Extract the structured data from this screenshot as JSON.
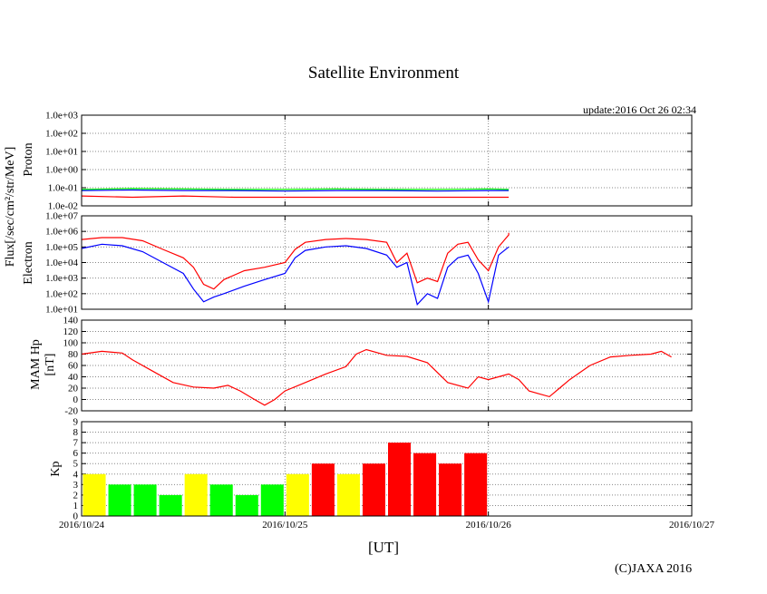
{
  "title": "Satellite Environment",
  "update": "update:2016 Oct 26 02:34",
  "x_unit": "[UT]",
  "copyright": "(C)JAXA 2016",
  "x_ticks": [
    "2016/10/24",
    "2016/10/25",
    "2016/10/26",
    "2016/10/27"
  ],
  "colors": {
    "red": "#ff0000",
    "blue": "#0000ff",
    "green": "#00ff00",
    "yellow": "#ffff00",
    "grid": "#888888",
    "frame": "#000000"
  },
  "chart_data": [
    {
      "type": "line",
      "name": "proton",
      "ylabel": "Proton",
      "shared_ylabel": "Flux[/sec/cm²/str/MeV]",
      "y_scale": "log",
      "y_ticks": [
        "1.0e+03",
        "1.0e+02",
        "1.0e+01",
        "1.0e+00",
        "1.0e-01",
        "1.0e-02"
      ],
      "ylim": [
        0.01,
        1000
      ],
      "xlim_days": [
        0,
        3
      ],
      "series": [
        {
          "color": "#00ff00",
          "points": [
            [
              0,
              0.08
            ],
            [
              0.25,
              0.09
            ],
            [
              0.5,
              0.085
            ],
            [
              0.75,
              0.08
            ],
            [
              1.0,
              0.08
            ],
            [
              1.25,
              0.085
            ],
            [
              1.5,
              0.08
            ],
            [
              1.75,
              0.08
            ],
            [
              2.0,
              0.085
            ],
            [
              2.1,
              0.08
            ]
          ]
        },
        {
          "color": "#0000ff",
          "points": [
            [
              0,
              0.07
            ],
            [
              0.25,
              0.075
            ],
            [
              0.5,
              0.07
            ],
            [
              0.75,
              0.07
            ],
            [
              1.0,
              0.065
            ],
            [
              1.25,
              0.07
            ],
            [
              1.5,
              0.07
            ],
            [
              1.75,
              0.065
            ],
            [
              2.0,
              0.07
            ],
            [
              2.1,
              0.07
            ]
          ]
        },
        {
          "color": "#ff0000",
          "points": [
            [
              0,
              0.035
            ],
            [
              0.25,
              0.03
            ],
            [
              0.5,
              0.035
            ],
            [
              0.75,
              0.03
            ],
            [
              1.0,
              0.03
            ],
            [
              1.25,
              0.03
            ],
            [
              1.5,
              0.03
            ],
            [
              1.75,
              0.03
            ],
            [
              2.0,
              0.03
            ],
            [
              2.1,
              0.03
            ]
          ]
        }
      ]
    },
    {
      "type": "line",
      "name": "electron",
      "ylabel": "Electron",
      "y_scale": "log",
      "y_ticks": [
        "1.0e+07",
        "1.0e+06",
        "1.0e+05",
        "1.0e+04",
        "1.0e+03",
        "1.0e+02",
        "1.0e+01"
      ],
      "ylim": [
        10,
        10000000
      ],
      "xlim_days": [
        0,
        3
      ],
      "series": [
        {
          "color": "#ff0000",
          "points": [
            [
              0,
              300000
            ],
            [
              0.1,
              400000
            ],
            [
              0.2,
              400000
            ],
            [
              0.3,
              250000
            ],
            [
              0.4,
              70000
            ],
            [
              0.5,
              20000
            ],
            [
              0.55,
              5000
            ],
            [
              0.6,
              400
            ],
            [
              0.65,
              200
            ],
            [
              0.7,
              800
            ],
            [
              0.8,
              3000
            ],
            [
              0.9,
              5000
            ],
            [
              1.0,
              10000
            ],
            [
              1.05,
              70000
            ],
            [
              1.1,
              200000
            ],
            [
              1.2,
              300000
            ],
            [
              1.3,
              350000
            ],
            [
              1.4,
              300000
            ],
            [
              1.5,
              200000
            ],
            [
              1.55,
              10000
            ],
            [
              1.6,
              40000
            ],
            [
              1.65,
              500
            ],
            [
              1.7,
              1000
            ],
            [
              1.75,
              600
            ],
            [
              1.8,
              40000
            ],
            [
              1.85,
              150000
            ],
            [
              1.9,
              200000
            ],
            [
              1.95,
              15000
            ],
            [
              2.0,
              3000
            ],
            [
              2.05,
              100000
            ],
            [
              2.1,
              600000
            ],
            [
              2.1,
              800000
            ]
          ]
        },
        {
          "color": "#0000ff",
          "points": [
            [
              0,
              80000
            ],
            [
              0.1,
              150000
            ],
            [
              0.2,
              120000
            ],
            [
              0.3,
              50000
            ],
            [
              0.4,
              10000
            ],
            [
              0.5,
              2000
            ],
            [
              0.55,
              200
            ],
            [
              0.6,
              30
            ],
            [
              0.65,
              60
            ],
            [
              0.7,
              100
            ],
            [
              0.8,
              300
            ],
            [
              0.9,
              800
            ],
            [
              1.0,
              2000
            ],
            [
              1.05,
              20000
            ],
            [
              1.1,
              60000
            ],
            [
              1.2,
              100000
            ],
            [
              1.3,
              120000
            ],
            [
              1.4,
              80000
            ],
            [
              1.5,
              30000
            ],
            [
              1.55,
              5000
            ],
            [
              1.6,
              10000
            ],
            [
              1.65,
              20
            ],
            [
              1.7,
              100
            ],
            [
              1.75,
              50
            ],
            [
              1.8,
              5000
            ],
            [
              1.85,
              20000
            ],
            [
              1.9,
              30000
            ],
            [
              1.95,
              2000
            ],
            [
              2.0,
              30
            ],
            [
              2.05,
              30000
            ],
            [
              2.1,
              100000
            ]
          ]
        }
      ]
    },
    {
      "type": "line",
      "name": "mam-hp",
      "ylabel": "MAM Hp",
      "yunit": "[nT]",
      "y_ticks": [
        "140",
        "120",
        "100",
        "80",
        "60",
        "40",
        "20",
        "0",
        "-20"
      ],
      "ylim": [
        -20,
        140
      ],
      "xlim_days": [
        0,
        3
      ],
      "series": [
        {
          "color": "#ff0000",
          "points": [
            [
              0,
              80
            ],
            [
              0.1,
              85
            ],
            [
              0.2,
              82
            ],
            [
              0.25,
              70
            ],
            [
              0.35,
              50
            ],
            [
              0.45,
              30
            ],
            [
              0.55,
              22
            ],
            [
              0.65,
              20
            ],
            [
              0.72,
              25
            ],
            [
              0.78,
              15
            ],
            [
              0.85,
              0
            ],
            [
              0.9,
              -10
            ],
            [
              0.95,
              0
            ],
            [
              1.0,
              15
            ],
            [
              1.1,
              30
            ],
            [
              1.2,
              45
            ],
            [
              1.3,
              58
            ],
            [
              1.35,
              80
            ],
            [
              1.4,
              88
            ],
            [
              1.5,
              78
            ],
            [
              1.6,
              76
            ],
            [
              1.7,
              65
            ],
            [
              1.8,
              30
            ],
            [
              1.9,
              20
            ],
            [
              1.95,
              40
            ],
            [
              2.0,
              35
            ],
            [
              2.05,
              40
            ],
            [
              2.1,
              45
            ],
            [
              2.15,
              35
            ],
            [
              2.2,
              15
            ],
            [
              2.25,
              10
            ],
            [
              2.3,
              5
            ],
            [
              2.35,
              20
            ],
            [
              2.4,
              35
            ],
            [
              2.5,
              60
            ],
            [
              2.6,
              75
            ],
            [
              2.7,
              78
            ],
            [
              2.8,
              80
            ],
            [
              2.85,
              85
            ],
            [
              2.9,
              75
            ]
          ]
        }
      ]
    },
    {
      "type": "bar",
      "name": "kp",
      "ylabel": "Kp",
      "y_ticks": [
        "9",
        "8",
        "7",
        "6",
        "5",
        "4",
        "3",
        "2",
        "1",
        "0"
      ],
      "ylim": [
        0,
        9
      ],
      "bar_width_days": 0.125,
      "values": [
        4,
        3,
        3,
        2,
        4,
        3,
        2,
        3,
        4,
        5,
        4,
        5,
        7,
        6,
        5,
        6
      ],
      "colors": [
        "#ffff00",
        "#00ff00",
        "#00ff00",
        "#00ff00",
        "#ffff00",
        "#00ff00",
        "#00ff00",
        "#00ff00",
        "#ffff00",
        "#ff0000",
        "#ffff00",
        "#ff0000",
        "#ff0000",
        "#ff0000",
        "#ff0000",
        "#ff0000"
      ]
    }
  ]
}
